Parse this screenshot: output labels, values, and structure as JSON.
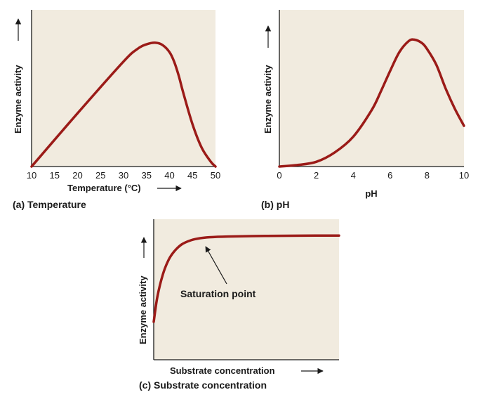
{
  "colors": {
    "plot_background": "#f1ebdf",
    "curve": "#9b1b18",
    "axis": "#1a1a1a"
  },
  "chart_data": [
    {
      "id": "a",
      "type": "line",
      "caption": "(a) Temperature",
      "xlabel": "Temperature (°C)",
      "ylabel": "Enzyme activity",
      "xlim": [
        10,
        50
      ],
      "ylim": [
        0,
        1
      ],
      "x_ticks": [
        10,
        15,
        20,
        25,
        30,
        35,
        40,
        45,
        50
      ],
      "y_ticks": [],
      "grid": false,
      "series": [
        {
          "x": [
            10,
            20,
            30,
            33,
            35,
            37,
            38.5,
            40,
            41,
            42,
            43,
            45,
            47,
            49,
            50
          ],
          "y": [
            0,
            0.34,
            0.67,
            0.75,
            0.78,
            0.79,
            0.775,
            0.73,
            0.67,
            0.58,
            0.47,
            0.27,
            0.12,
            0.03,
            0
          ]
        }
      ]
    },
    {
      "id": "b",
      "type": "line",
      "caption": "(b) pH",
      "xlabel": "pH",
      "ylabel": "Enzyme activity",
      "xlim": [
        0,
        10
      ],
      "ylim": [
        0,
        1
      ],
      "x_ticks": [
        0,
        2,
        4,
        6,
        8,
        10
      ],
      "y_ticks": [],
      "grid": false,
      "series": [
        {
          "x": [
            0,
            1,
            2,
            3,
            4,
            5,
            5.5,
            6,
            6.5,
            7,
            7.3,
            7.7,
            8,
            8.5,
            9,
            9.5,
            10
          ],
          "y": [
            0,
            0.01,
            0.03,
            0.09,
            0.19,
            0.36,
            0.48,
            0.61,
            0.73,
            0.8,
            0.81,
            0.79,
            0.75,
            0.65,
            0.5,
            0.37,
            0.26
          ]
        }
      ]
    },
    {
      "id": "c",
      "type": "line",
      "caption": "(c) Substrate concentration",
      "xlabel": "Substrate concentration",
      "ylabel": "Enzyme activity",
      "xlim": [
        0,
        1
      ],
      "ylim": [
        0,
        1
      ],
      "x_ticks": [],
      "y_ticks": [],
      "grid": false,
      "annotations": [
        {
          "text": "Saturation point",
          "x": 0.28,
          "y": 0.87
        }
      ],
      "series": [
        {
          "x": [
            0,
            0.02,
            0.05,
            0.08,
            0.11,
            0.15,
            0.2,
            0.25,
            0.3,
            0.4,
            0.6,
            0.8,
            1.0
          ],
          "y": [
            0.27,
            0.45,
            0.61,
            0.71,
            0.77,
            0.82,
            0.85,
            0.865,
            0.872,
            0.877,
            0.881,
            0.883,
            0.884
          ]
        }
      ]
    }
  ]
}
